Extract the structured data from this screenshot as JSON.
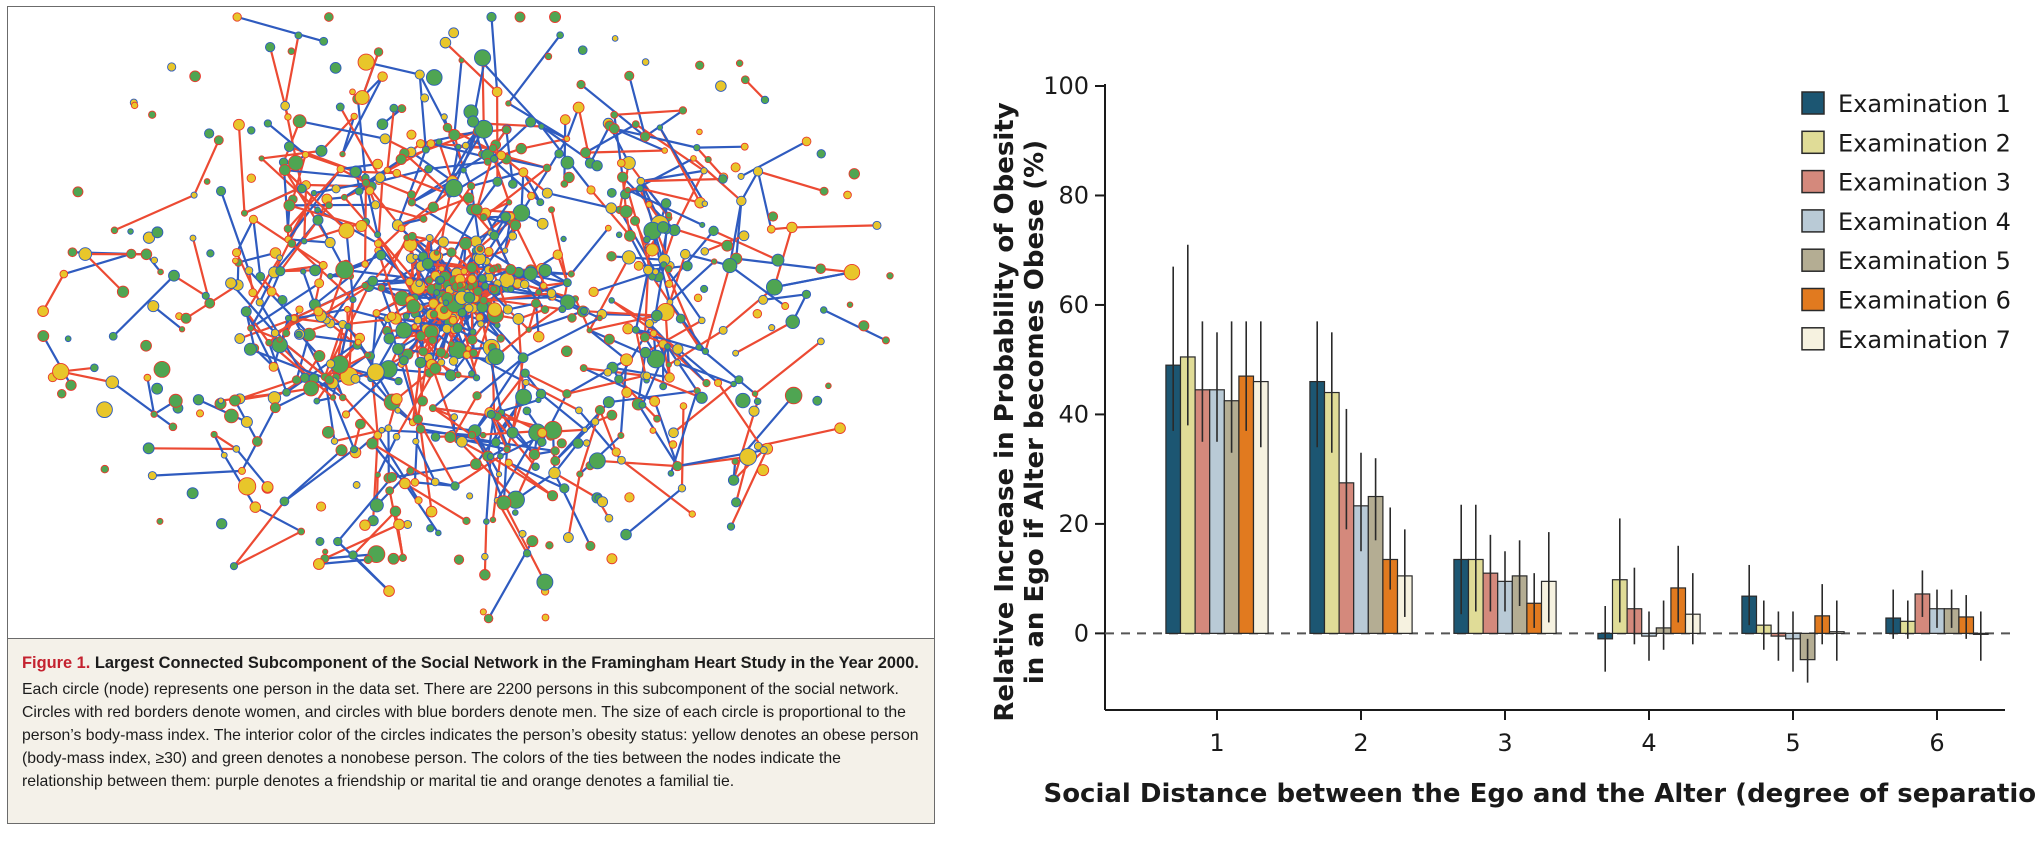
{
  "figure_caption": {
    "label": "Figure 1.",
    "title": "Largest Connected Subcomponent of the Social Network in the Framingham Heart Study in the Year 2000.",
    "body": "Each circle (node) represents one person in the data set. There are 2200 persons in this subcomponent of the social network. Circles with red borders denote women, and circles with blue borders denote men. The size of each circle is proportional to the person’s body-mass index. The interior color of the circles indicates the person’s obesity status: yellow denotes an obese person (body-mass index, ≥30) and green denotes a nonobese person. The colors of the ties between the nodes indicate the relationship between them: purple denotes a friendship or marital tie and orange denotes a familial tie."
  },
  "network_colors": {
    "obese": "#e8c62a",
    "nonobese": "#4fa552",
    "women_border": "#e83a2e",
    "men_border": "#2f5bbf",
    "friendship_tie": "#2f5bbf",
    "familial_tie": "#ec4a33"
  },
  "chart_data": {
    "type": "bar",
    "categories": [
      "1",
      "2",
      "3",
      "4",
      "5",
      "6"
    ],
    "xlabel": "Social Distance between the Ego and the Alter (degree of separation)",
    "ylabel": [
      "Relative Increase in Probability of Obesity",
      "in an Ego if Alter becomes Obese (%)"
    ],
    "ylim": [
      -14,
      100
    ],
    "yticks": [
      0,
      20,
      40,
      60,
      80,
      100
    ],
    "legend_position": "top-right",
    "zero_line": "dashed",
    "series": [
      {
        "name": "Examination 1",
        "color": "#1c5672",
        "values": [
          49,
          46,
          13.5,
          -1,
          6.8,
          2.8
        ],
        "error_low": [
          37,
          34,
          3.5,
          -7,
          1.5,
          -1
        ],
        "error_high": [
          67,
          57,
          23.5,
          5,
          12.5,
          8
        ]
      },
      {
        "name": "Examination 2",
        "color": "#e0dc97",
        "values": [
          50.5,
          44,
          13.5,
          9.8,
          1.5,
          2.2
        ],
        "error_low": [
          38,
          33,
          4,
          2,
          -3,
          -1
        ],
        "error_high": [
          71,
          55,
          23.5,
          21,
          6,
          6
        ]
      },
      {
        "name": "Examination 3",
        "color": "#d4897c",
        "values": [
          44.5,
          27.5,
          11,
          4.5,
          -0.5,
          7.2
        ],
        "error_low": [
          35,
          19,
          4,
          -2,
          -5,
          3
        ],
        "error_high": [
          57,
          41,
          18,
          12,
          4,
          11.5
        ]
      },
      {
        "name": "Examination 4",
        "color": "#b9cad6",
        "values": [
          44.5,
          23.3,
          9.5,
          -0.5,
          -1,
          4.5
        ],
        "error_low": [
          35,
          15,
          4,
          -5,
          -7,
          1
        ],
        "error_high": [
          55,
          33,
          15,
          4,
          4,
          8
        ]
      },
      {
        "name": "Examination 5",
        "color": "#b4ad93",
        "values": [
          42.5,
          25,
          10.5,
          1,
          -4.8,
          4.5
        ],
        "error_low": [
          33,
          17,
          5,
          -3,
          -9,
          1
        ],
        "error_high": [
          57,
          32,
          17,
          6,
          -1,
          8
        ]
      },
      {
        "name": "Examination 6",
        "color": "#e17a1f",
        "values": [
          47,
          13.5,
          5.5,
          8.3,
          3.2,
          3
        ],
        "error_low": [
          37,
          8,
          1,
          2,
          -2,
          -1
        ],
        "error_high": [
          57,
          23,
          11,
          16,
          9,
          7
        ]
      },
      {
        "name": "Examination 7",
        "color": "#f6f2e0",
        "values": [
          46,
          10.5,
          9.5,
          3.5,
          0.3,
          0
        ],
        "error_low": [
          34,
          3,
          2,
          -2,
          -5,
          -5
        ],
        "error_high": [
          57,
          19,
          18.5,
          11,
          6,
          4
        ]
      }
    ]
  }
}
